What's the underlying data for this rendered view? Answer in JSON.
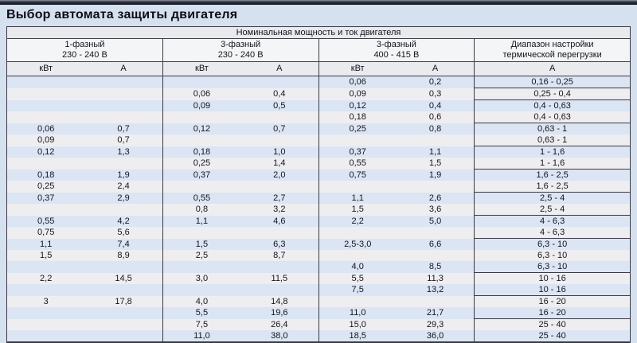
{
  "page": {
    "title": "Выбор автомата защиты двигателя"
  },
  "colors": {
    "topbar": "#1a1d28",
    "page_bg": "#d6e1ef",
    "stripe_blue": "#dbe5f3",
    "stripe_gray": "#eeeef1",
    "border_dark": "#3a3a44"
  },
  "table": {
    "span_header": "Номинальная мощность и ток двигателя",
    "groups": [
      {
        "line1": "1-фазный",
        "line2": "230 - 240 В"
      },
      {
        "line1": "3-фазный",
        "line2": "230 - 240 В"
      },
      {
        "line1": "3-фазный",
        "line2": "400 - 415 В"
      },
      {
        "line1": "Диапазон настройки",
        "line2": "термической перегрузки"
      }
    ],
    "unit_headers": [
      "кВт",
      "А",
      "кВт",
      "А",
      "кВт",
      "А",
      "А"
    ],
    "rows": [
      {
        "c": [
          "",
          "",
          "",
          "",
          "0,06",
          "0,2",
          "0,16 - 0,25"
        ],
        "sep": true
      },
      {
        "c": [
          "",
          "",
          "0,06",
          "0,4",
          "0,09",
          "0,3",
          "0,25 - 0,4"
        ],
        "sep": true
      },
      {
        "c": [
          "",
          "",
          "0,09",
          "0,5",
          "0,12",
          "0,4",
          "0,4 - 0,63"
        ],
        "sep": false
      },
      {
        "c": [
          "",
          "",
          "",
          "",
          "0,18",
          "0,6",
          "0,4 - 0,63"
        ],
        "sep": true
      },
      {
        "c": [
          "0,06",
          "0,7",
          "0,12",
          "0,7",
          "0,25",
          "0,8",
          "0,63 - 1"
        ],
        "sep": false
      },
      {
        "c": [
          "0,09",
          "0,7",
          "",
          "",
          "",
          "",
          "0,63 - 1"
        ],
        "sep": true
      },
      {
        "c": [
          "0,12",
          "1,3",
          "0,18",
          "1,0",
          "0,37",
          "1,1",
          "1 - 1,6"
        ],
        "sep": false
      },
      {
        "c": [
          "",
          "",
          "0,25",
          "1,4",
          "0,55",
          "1,5",
          "1 - 1,6"
        ],
        "sep": true
      },
      {
        "c": [
          "0,18",
          "1,9",
          "0,37",
          "2,0",
          "0,75",
          "1,9",
          "1,6 - 2,5"
        ],
        "sep": false
      },
      {
        "c": [
          "0,25",
          "2,4",
          "",
          "",
          "",
          "",
          "1,6 - 2,5"
        ],
        "sep": true
      },
      {
        "c": [
          "0,37",
          "2,9",
          "0,55",
          "2,7",
          "1,1",
          "2,6",
          "2,5 - 4"
        ],
        "sep": false
      },
      {
        "c": [
          "",
          "",
          "0,8",
          "3,2",
          "1,5",
          "3,6",
          "2,5 - 4"
        ],
        "sep": true
      },
      {
        "c": [
          "0,55",
          "4,2",
          "1,1",
          "4,6",
          "2,2",
          "5,0",
          "4 - 6,3"
        ],
        "sep": false
      },
      {
        "c": [
          "0,75",
          "5,6",
          "",
          "",
          "",
          "",
          "4 - 6,3"
        ],
        "sep": true
      },
      {
        "c": [
          "1,1",
          "7,4",
          "1,5",
          "6,3",
          "2,5-3,0",
          "6,6",
          "6,3 - 10"
        ],
        "sep": false
      },
      {
        "c": [
          "1,5",
          "8,9",
          "2,5",
          "8,7",
          "",
          "",
          "6,3 - 10"
        ],
        "sep": false
      },
      {
        "c": [
          "",
          "",
          "",
          "",
          "4,0",
          "8,5",
          "6,3 - 10"
        ],
        "sep": true
      },
      {
        "c": [
          "2,2",
          "14,5",
          "3,0",
          "11,5",
          "5,5",
          "11,3",
          "10 - 16"
        ],
        "sep": false
      },
      {
        "c": [
          "",
          "",
          "",
          "",
          "7,5",
          "13,2",
          "10 - 16"
        ],
        "sep": true
      },
      {
        "c": [
          "3",
          "17,8",
          "4,0",
          "14,8",
          "",
          "",
          "16 - 20"
        ],
        "sep": false
      },
      {
        "c": [
          "",
          "",
          "5,5",
          "19,6",
          "11,0",
          "21,7",
          "16 - 20"
        ],
        "sep": true
      },
      {
        "c": [
          "",
          "",
          "7,5",
          "26,4",
          "15,0",
          "29,3",
          "25 - 40"
        ],
        "sep": false
      },
      {
        "c": [
          "",
          "",
          "11,0",
          "38,0",
          "18,5",
          "36,0",
          "25 - 40"
        ],
        "sep": false
      }
    ]
  }
}
